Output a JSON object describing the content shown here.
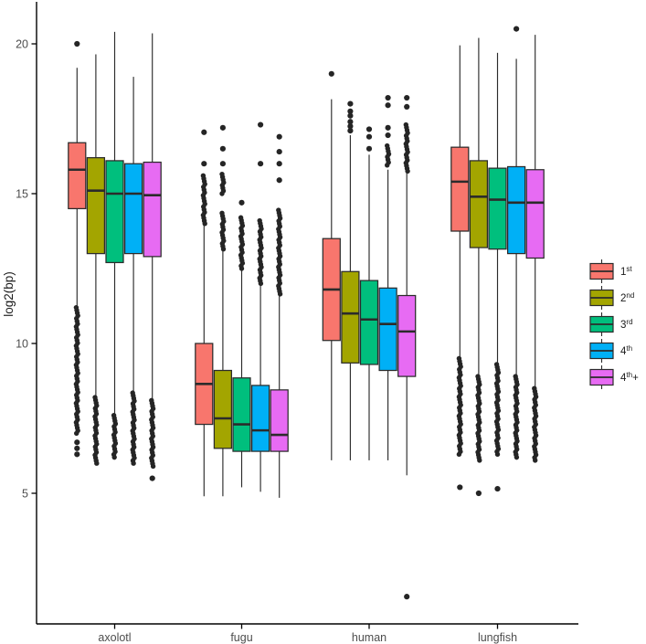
{
  "chart_data": {
    "type": "boxplot",
    "title": "",
    "xlabel": "",
    "ylabel": "log2(bp)",
    "y_ticks": [
      5,
      10,
      15,
      20
    ],
    "ylim": [
      0.6,
      21.3
    ],
    "grid": false,
    "legend_position": "right",
    "categories": [
      "axolotl",
      "fugu",
      "human",
      "lungfish"
    ],
    "legend_entries": [
      {
        "base": "1",
        "sup": "st",
        "tail": ""
      },
      {
        "base": "2",
        "sup": "nd",
        "tail": ""
      },
      {
        "base": "3",
        "sup": "rd",
        "tail": ""
      },
      {
        "base": "4",
        "sup": "th",
        "tail": ""
      },
      {
        "base": "4",
        "sup": "th",
        "tail": "+"
      }
    ],
    "colors": {
      "box_border": "#2b2b2b",
      "outlier": "#252525",
      "axis_line": "#000000",
      "tick_text": "#4d4d4d"
    },
    "series": [
      {
        "name": "1st",
        "color": "#F8766D",
        "data": [
          {
            "category": "axolotl",
            "whislo": 11.25,
            "q1": 14.5,
            "med": 15.8,
            "q3": 16.7,
            "whishi": 19.2,
            "high_points": [
              20.0
            ],
            "high_dense": [],
            "low_dense": [
              [
                11.2,
                7.0
              ]
            ],
            "low_points": [
              6.7,
              6.5,
              6.3
            ]
          },
          {
            "category": "fugu",
            "whislo": 4.9,
            "q1": 7.3,
            "med": 8.65,
            "q3": 10.0,
            "whishi": 13.95,
            "high_points": [
              16.0,
              17.05
            ],
            "high_dense": [
              [
                14.0,
                15.6
              ]
            ],
            "low_dense": [],
            "low_points": []
          },
          {
            "category": "human",
            "whislo": 6.1,
            "q1": 10.1,
            "med": 11.8,
            "q3": 13.5,
            "whishi": 18.15,
            "high_points": [
              19.0
            ],
            "high_dense": [],
            "low_dense": [],
            "low_points": []
          },
          {
            "category": "lungfish",
            "whislo": 9.5,
            "q1": 13.75,
            "med": 15.4,
            "q3": 16.55,
            "whishi": 19.95,
            "high_points": [],
            "high_dense": [],
            "low_dense": [
              [
                9.5,
                6.3
              ]
            ],
            "low_points": [
              5.2
            ]
          }
        ]
      },
      {
        "name": "2nd",
        "color": "#A3A500",
        "data": [
          {
            "category": "axolotl",
            "whislo": 8.2,
            "q1": 13.0,
            "med": 15.1,
            "q3": 16.2,
            "whishi": 19.65,
            "high_points": [],
            "high_dense": [],
            "low_dense": [
              [
                8.2,
                6.0
              ]
            ],
            "low_points": []
          },
          {
            "category": "fugu",
            "whislo": 4.9,
            "q1": 6.5,
            "med": 7.5,
            "q3": 9.1,
            "whishi": 13.1,
            "high_points": [
              16.0,
              16.5,
              17.2
            ],
            "high_dense": [
              [
                13.15,
                14.35
              ],
              [
                15.0,
                15.65
              ]
            ],
            "low_dense": [],
            "low_points": []
          },
          {
            "category": "human",
            "whislo": 6.1,
            "q1": 9.35,
            "med": 11.0,
            "q3": 12.4,
            "whishi": 16.95,
            "high_points": [
              17.1,
              17.25,
              17.4,
              17.6,
              17.75,
              18.0
            ],
            "high_dense": [],
            "low_dense": [],
            "low_points": []
          },
          {
            "category": "lungfish",
            "whislo": 8.9,
            "q1": 13.2,
            "med": 14.9,
            "q3": 16.1,
            "whishi": 20.2,
            "high_points": [],
            "high_dense": [],
            "low_dense": [
              [
                8.9,
                6.1
              ]
            ],
            "low_points": [
              5.0
            ]
          }
        ]
      },
      {
        "name": "3rd",
        "color": "#00BF7D",
        "data": [
          {
            "category": "axolotl",
            "whislo": 7.6,
            "q1": 12.7,
            "med": 15.0,
            "q3": 16.1,
            "whishi": 20.4,
            "high_points": [],
            "high_dense": [],
            "low_dense": [
              [
                7.6,
                6.2
              ]
            ],
            "low_points": []
          },
          {
            "category": "fugu",
            "whislo": 5.2,
            "q1": 6.4,
            "med": 7.3,
            "q3": 8.85,
            "whishi": 12.45,
            "high_points": [
              14.7
            ],
            "high_dense": [
              [
                12.5,
                14.2
              ]
            ],
            "low_dense": [],
            "low_points": []
          },
          {
            "category": "human",
            "whislo": 6.1,
            "q1": 9.3,
            "med": 10.8,
            "q3": 12.1,
            "whishi": 16.3,
            "high_points": [
              16.5,
              16.9,
              17.15
            ],
            "high_dense": [],
            "low_dense": [],
            "low_points": []
          },
          {
            "category": "lungfish",
            "whislo": 9.3,
            "q1": 13.15,
            "med": 14.8,
            "q3": 15.85,
            "whishi": 19.7,
            "high_points": [],
            "high_dense": [],
            "low_dense": [
              [
                9.3,
                6.3
              ]
            ],
            "low_points": [
              5.15
            ]
          }
        ]
      },
      {
        "name": "4th",
        "color": "#00B0F6",
        "data": [
          {
            "category": "axolotl",
            "whislo": 8.35,
            "q1": 13.0,
            "med": 15.0,
            "q3": 16.0,
            "whishi": 18.9,
            "high_points": [],
            "high_dense": [],
            "low_dense": [
              [
                8.35,
                6.0
              ]
            ],
            "low_points": []
          },
          {
            "category": "fugu",
            "whislo": 5.05,
            "q1": 6.4,
            "med": 7.1,
            "q3": 8.6,
            "whishi": 11.95,
            "high_points": [
              16.0,
              17.3
            ],
            "high_dense": [
              [
                12.0,
                14.1
              ]
            ],
            "low_dense": [],
            "low_points": []
          },
          {
            "category": "human",
            "whislo": 6.1,
            "q1": 9.1,
            "med": 10.65,
            "q3": 11.85,
            "whishi": 15.8,
            "high_points": [
              16.95,
              17.2,
              17.95,
              18.2
            ],
            "high_dense": [
              [
                15.95,
                16.6
              ]
            ],
            "low_dense": [],
            "low_points": []
          },
          {
            "category": "lungfish",
            "whislo": 8.9,
            "q1": 13.0,
            "med": 14.7,
            "q3": 15.9,
            "whishi": 19.5,
            "high_points": [
              20.5
            ],
            "high_dense": [],
            "low_dense": [
              [
                8.9,
                6.2
              ]
            ],
            "low_points": []
          }
        ]
      },
      {
        "name": "4th+",
        "color": "#E76BF3",
        "data": [
          {
            "category": "axolotl",
            "whislo": 8.1,
            "q1": 12.9,
            "med": 14.95,
            "q3": 16.05,
            "whishi": 20.35,
            "high_points": [],
            "high_dense": [],
            "low_dense": [
              [
                8.1,
                5.9
              ]
            ],
            "low_points": [
              5.5
            ]
          },
          {
            "category": "fugu",
            "whislo": 4.85,
            "q1": 6.4,
            "med": 6.95,
            "q3": 8.45,
            "whishi": 11.6,
            "high_points": [
              15.45,
              16.0,
              16.4,
              16.9
            ],
            "high_dense": [
              [
                11.65,
                14.45
              ]
            ],
            "low_dense": [],
            "low_points": []
          },
          {
            "category": "human",
            "whislo": 5.6,
            "q1": 8.9,
            "med": 10.4,
            "q3": 11.6,
            "whishi": 15.7,
            "high_points": [
              17.9,
              18.2
            ],
            "high_dense": [
              [
                15.75,
                17.3
              ]
            ],
            "low_dense": [],
            "low_points": [
              1.55
            ]
          },
          {
            "category": "lungfish",
            "whislo": 8.5,
            "q1": 12.85,
            "med": 14.7,
            "q3": 15.8,
            "whishi": 20.3,
            "high_points": [],
            "high_dense": [],
            "low_dense": [
              [
                8.5,
                6.1
              ]
            ],
            "low_points": []
          }
        ]
      }
    ]
  }
}
